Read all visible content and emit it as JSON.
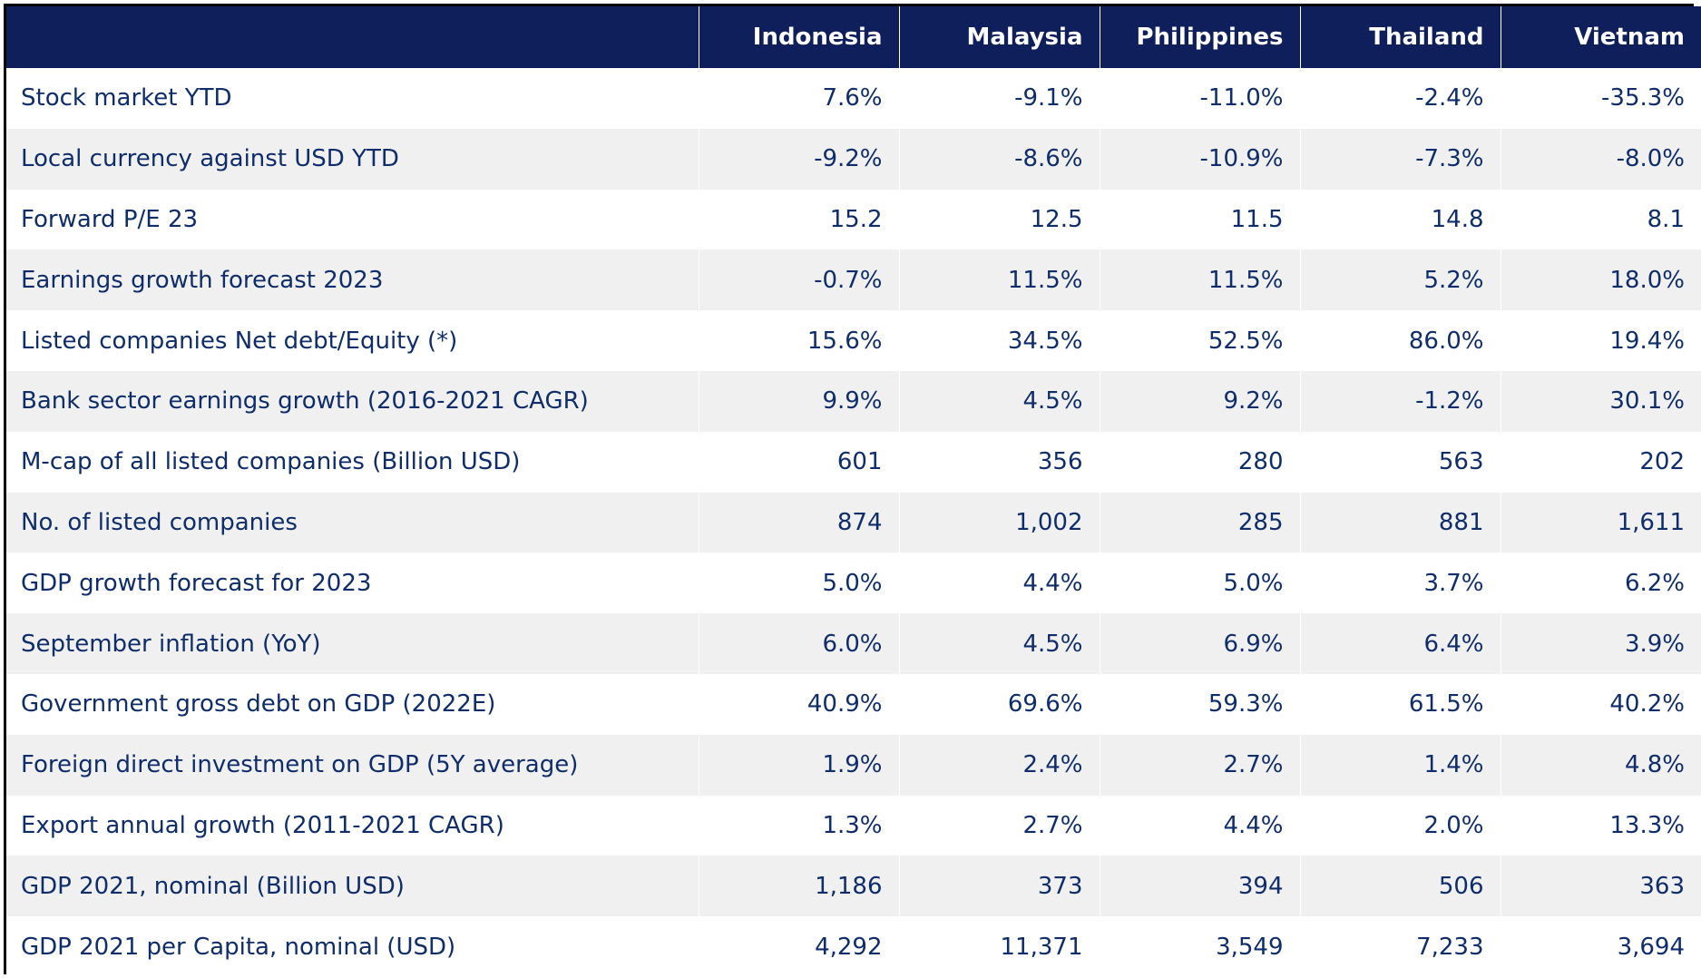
{
  "colors": {
    "header_background": "#0f1f5c",
    "header_text": "#ffffff",
    "body_text": "#0f2d6b",
    "row_alt_background": "#f0f0f0",
    "row_background": "#ffffff",
    "border": "#000000"
  },
  "chart_data": {
    "type": "table",
    "columns": [
      "",
      "Indonesia",
      "Malaysia",
      "Philippines",
      "Thailand",
      "Vietnam"
    ],
    "rows": [
      [
        "Stock market YTD",
        "7.6%",
        "-9.1%",
        "-11.0%",
        "-2.4%",
        "-35.3%"
      ],
      [
        "Local currency against USD YTD",
        "-9.2%",
        "-8.6%",
        "-10.9%",
        "-7.3%",
        "-8.0%"
      ],
      [
        "Forward P/E 23",
        "15.2",
        "12.5",
        "11.5",
        "14.8",
        "8.1"
      ],
      [
        "Earnings growth forecast 2023",
        "-0.7%",
        "11.5%",
        "11.5%",
        "5.2%",
        "18.0%"
      ],
      [
        "Listed companies Net debt/Equity (*)",
        "15.6%",
        "34.5%",
        "52.5%",
        "86.0%",
        "19.4%"
      ],
      [
        "Bank sector earnings growth (2016-2021 CAGR)",
        "9.9%",
        "4.5%",
        "9.2%",
        "-1.2%",
        "30.1%"
      ],
      [
        "M-cap of all listed companies (Billion USD)",
        "601",
        "356",
        "280",
        "563",
        "202"
      ],
      [
        "No. of  listed companies",
        "874",
        "1,002",
        "285",
        "881",
        "1,611"
      ],
      [
        "GDP growth forecast for 2023",
        "5.0%",
        "4.4%",
        "5.0%",
        "3.7%",
        "6.2%"
      ],
      [
        "September inflation (YoY)",
        "6.0%",
        "4.5%",
        "6.9%",
        "6.4%",
        "3.9%"
      ],
      [
        "Government gross debt on GDP (2022E)",
        "40.9%",
        "69.6%",
        "59.3%",
        "61.5%",
        "40.2%"
      ],
      [
        "Foreign direct investment on GDP  (5Y average)",
        "1.9%",
        "2.4%",
        "2.7%",
        "1.4%",
        "4.8%"
      ],
      [
        "Export annual growth (2011-2021 CAGR)",
        "1.3%",
        "2.7%",
        "4.4%",
        "2.0%",
        "13.3%"
      ],
      [
        "GDP 2021, nominal (Billion USD)",
        "1,186",
        "373",
        "394",
        "506",
        "363"
      ],
      [
        "GDP 2021 per Capita, nominal (USD)",
        "4,292",
        "11,371",
        "3,549",
        "7,233",
        "3,694"
      ]
    ]
  }
}
